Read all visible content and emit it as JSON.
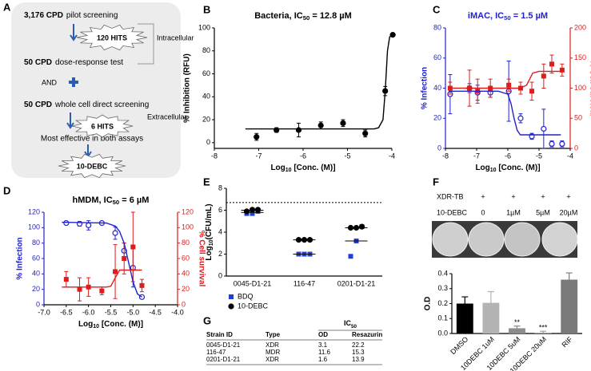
{
  "panel_labels": [
    "A",
    "B",
    "C",
    "D",
    "E",
    "F",
    "G"
  ],
  "workflow": {
    "pilot": [
      "3,176 CPD",
      "pilot screening"
    ],
    "hits_1": "120 HITS",
    "intracellular": "Intracellular",
    "dose_response": [
      "50 CPD",
      "dose-response test"
    ],
    "and": "AND",
    "direct": [
      "50 CPD",
      "whole cell direct screening"
    ],
    "extracellular": "Extracellular",
    "hits_2": "6 HITS",
    "most_effective": "Most effective in both assays",
    "result": "10-DEBC"
  },
  "chart_data": [
    {
      "type": "scatter",
      "title": [
        "Bacteria, IC",
        "50",
        " = 12.8 µM"
      ],
      "x_label": [
        "Log",
        "10",
        " [Conc. (M)]"
      ],
      "y_label": "% Inhibition (RFU)",
      "xlim": [
        -8,
        -4
      ],
      "xticks": [
        -8,
        -7,
        -6,
        -5,
        -4
      ],
      "ylim": [
        -5,
        100
      ],
      "yticks": [
        0,
        20,
        40,
        60,
        80,
        100
      ],
      "series": [
        {
          "color": "#000000",
          "marker": "circle",
          "x": [
            -7.05,
            -6.6,
            -6.1,
            -5.6,
            -5.1,
            -4.6,
            -4.15,
            -3.98
          ],
          "values": [
            5,
            11,
            11,
            15,
            17,
            8,
            45,
            94
          ],
          "errors": [
            3,
            2,
            6,
            3,
            3,
            3,
            4,
            0
          ]
        },
        {
          "color": "#000000",
          "style": "line",
          "x": [
            -7.3,
            -4.4,
            -4.3,
            -4.2,
            -4.15,
            -4.1,
            -4.05,
            -4.0
          ],
          "values": [
            12,
            12,
            13,
            20,
            45,
            80,
            92,
            94
          ]
        }
      ]
    },
    {
      "type": "scatter",
      "title": [
        "iMAC, IC",
        "50",
        " = 1.5 µM"
      ],
      "title_color": "#2222cc",
      "x_label": [
        "Log",
        "10",
        " [Conc. (M)]"
      ],
      "y_label": "% Infection",
      "y_label_color": "#2222cc",
      "y2_label": "% Cell survival",
      "y2_label_color": "#dd1c1c",
      "xlim": [
        -8,
        -4
      ],
      "xticks": [
        -8,
        -7,
        -6,
        -5,
        -4
      ],
      "ylim": [
        0,
        80
      ],
      "yticks": [
        0,
        20,
        40,
        60,
        80
      ],
      "y2lim": [
        0,
        200
      ],
      "y2ticks": [
        0,
        50,
        100,
        150,
        200
      ],
      "series": [
        {
          "color": "#2222cc",
          "marker": "open-circle",
          "x": [
            -7.85,
            -7.23,
            -6.97,
            -6.56,
            -5.97,
            -5.59,
            -5.23,
            -4.85,
            -4.59,
            -4.26
          ],
          "values": [
            36,
            40,
            37,
            37,
            38,
            20,
            8,
            13,
            3,
            3
          ],
          "errors": [
            13,
            3,
            5,
            3,
            20,
            3,
            2,
            13,
            2,
            2
          ]
        },
        {
          "color": "#dd1c1c",
          "marker": "square",
          "axis": "y2",
          "x": [
            -7.85,
            -7.23,
            -6.97,
            -6.56,
            -5.97,
            -5.59,
            -5.23,
            -4.85,
            -4.59,
            -4.26
          ],
          "values": [
            100,
            100,
            95,
            100,
            105,
            100,
            95,
            120,
            140,
            130
          ],
          "errors": [
            10,
            30,
            20,
            15,
            10,
            10,
            15,
            20,
            15,
            10
          ]
        },
        {
          "color": "#2222cc",
          "style": "line",
          "x": [
            -7.9,
            -6.3,
            -6.0,
            -5.9,
            -5.8,
            -5.7,
            -5.6,
            -4.3
          ],
          "values": [
            38,
            38,
            36,
            30,
            20,
            12,
            9,
            9
          ]
        },
        {
          "color": "#dd1c1c",
          "style": "line",
          "axis": "y2",
          "x": [
            -7.9,
            -5.6,
            -5.4,
            -5.3,
            -5.2,
            -5.0,
            -4.3
          ],
          "values": [
            100,
            100,
            105,
            115,
            125,
            128,
            128
          ]
        }
      ]
    },
    {
      "type": "scatter",
      "title": [
        "hMDM, IC",
        "50",
        " = 6 µM"
      ],
      "x_label": [
        "Log",
        "10",
        " [Conc. (M)]"
      ],
      "y_label": "% Infection",
      "y_label_color": "#2222cc",
      "y2_label": "% Cell survival",
      "y2_label_color": "#dd1c1c",
      "xlim": [
        -7,
        -4
      ],
      "xticks": [
        {
          "value": -7,
          "label": "-7.0"
        },
        -6.5,
        {
          "value": -6,
          "label": "-6.0"
        },
        -5.5,
        {
          "value": -5,
          "label": "-5.0"
        },
        -4.5,
        {
          "value": -4,
          "label": "-4.0"
        }
      ],
      "ylim": [
        0,
        120
      ],
      "yticks": [
        0,
        20,
        40,
        60,
        80,
        100,
        120
      ],
      "y2lim": [
        0,
        120
      ],
      "y2ticks": [
        0,
        20,
        40,
        60,
        80,
        100,
        120
      ],
      "series": [
        {
          "color": "#2222cc",
          "marker": "open-circle",
          "x": [
            -6.5,
            -6.2,
            -6.0,
            -5.7,
            -5.4,
            -5.2,
            -5.0,
            -4.8
          ],
          "values": [
            106,
            105,
            103,
            106,
            93,
            70,
            48,
            10
          ],
          "errors": [
            1,
            3,
            6,
            2,
            8,
            10,
            25,
            2
          ]
        },
        {
          "color": "#dd1c1c",
          "marker": "square",
          "axis": "y2",
          "x": [
            -6.5,
            -6.2,
            -6.0,
            -5.7,
            -5.4,
            -5.2,
            -5.0,
            -4.8
          ],
          "values": [
            33,
            20,
            23,
            18,
            43,
            60,
            75,
            25
          ],
          "errors": [
            10,
            15,
            12,
            5,
            35,
            20,
            45,
            8
          ]
        },
        {
          "color": "#2222cc",
          "style": "line",
          "x": [
            -6.6,
            -5.6,
            -5.4,
            -5.3,
            -5.2,
            -5.1,
            -5.0,
            -4.9,
            -4.8
          ],
          "values": [
            107,
            106,
            102,
            95,
            80,
            55,
            30,
            14,
            10
          ]
        },
        {
          "color": "#dd1c1c",
          "style": "line",
          "axis": "y2",
          "x": [
            -6.6,
            -5.6,
            -5.5,
            -5.4,
            -5.3,
            -4.8
          ],
          "values": [
            23,
            23,
            24,
            35,
            45,
            45
          ]
        }
      ]
    },
    {
      "type": "dot",
      "y_label": [
        "Log",
        "10",
        "(CFU/mL)"
      ],
      "categories": [
        "0045-D1-21",
        "116-47",
        "0201-D1-21"
      ],
      "ylim": [
        0,
        8
      ],
      "yticks": [
        0,
        2,
        4,
        6,
        8
      ],
      "reference_line": 6.7,
      "legend": "bottom-left",
      "series": [
        {
          "name": "BDQ",
          "color": "#1f3fd8",
          "marker": "square",
          "values": [
            [
              5.7,
              5.7,
              5.9
            ],
            [
              2,
              2,
              2
            ],
            [
              1.8,
              3.2,
              4.5
            ]
          ],
          "means": [
            5.8,
            2,
            3.2
          ]
        },
        {
          "name": "10-DEBC",
          "color": "#000000",
          "marker": "circle",
          "values": [
            [
              5.9,
              6.05,
              6.05
            ],
            [
              3.3,
              3.3,
              3.3
            ],
            [
              4.4,
              4.4,
              4.5
            ]
          ],
          "means": [
            6,
            3.3,
            4.4
          ]
        }
      ]
    },
    {
      "type": "bar",
      "y_label": "O.D",
      "categories": [
        "DMSO",
        "10DEBC 1uM",
        "10DEBC 5uM",
        "10DEBC 20uM",
        "RIF"
      ],
      "values": [
        0.2,
        0.205,
        0.035,
        0.005,
        0.36
      ],
      "errors": [
        0.045,
        0.075,
        0.015,
        0.01,
        0.045
      ],
      "colors": [
        "#000000",
        "#b3b3b3",
        "#8c8c8c",
        "#9e9e9e",
        "#7a7a7a"
      ],
      "annotations": [
        null,
        null,
        "**",
        "***",
        null
      ],
      "ylim": [
        0,
        0.4
      ],
      "yticks": [
        {
          "value": 0,
          "label": "0.0"
        },
        0.1,
        0.2,
        0.3,
        0.4
      ]
    }
  ],
  "plates": {
    "rows": [
      {
        "label": "XDR-TB",
        "values": [
          "+",
          "+",
          "+",
          "+"
        ]
      },
      {
        "label": "10-DEBC",
        "values": [
          "0",
          "1µM",
          "5µM",
          "20µM"
        ]
      }
    ]
  },
  "table": {
    "group_header": [
      "IC",
      "50"
    ],
    "columns": [
      "Strain ID",
      "Type",
      "OD",
      "Resazurin"
    ],
    "rows": [
      [
        "0045-D1-21",
        "XDR",
        3.1,
        22.2
      ],
      [
        "116-47",
        "MDR",
        11.6,
        15.3
      ],
      [
        "0201-D1-21",
        "XDR",
        1.6,
        13.9
      ]
    ]
  }
}
